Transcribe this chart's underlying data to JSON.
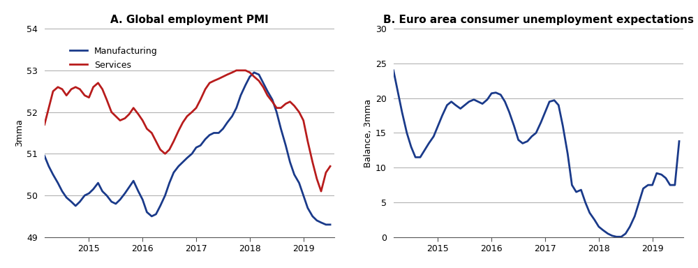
{
  "title_a": "A. Global employment PMI",
  "title_b": "B. Euro area consumer unemployment expectations",
  "ylabel_a": "3mma",
  "ylabel_b": "Balance, 3mma",
  "ylim_a": [
    49,
    54
  ],
  "ylim_b": [
    0,
    30
  ],
  "yticks_a": [
    49,
    50,
    51,
    52,
    53,
    54
  ],
  "yticks_b": [
    0,
    5,
    10,
    15,
    20,
    25,
    30
  ],
  "line_color_manufacturing": "#1a3a8a",
  "line_color_services": "#b81c1c",
  "line_color_b": "#1a3a8a",
  "line_width": 2.0,
  "background_color": "#ffffff",
  "grid_color": "#aaaaaa",
  "mfg_x": [
    2014.17,
    2014.25,
    2014.33,
    2014.42,
    2014.5,
    2014.58,
    2014.67,
    2014.75,
    2014.83,
    2014.92,
    2015.0,
    2015.08,
    2015.17,
    2015.25,
    2015.33,
    2015.42,
    2015.5,
    2015.58,
    2015.67,
    2015.75,
    2015.83,
    2015.92,
    2016.0,
    2016.08,
    2016.17,
    2016.25,
    2016.33,
    2016.42,
    2016.5,
    2016.58,
    2016.67,
    2016.75,
    2016.83,
    2016.92,
    2017.0,
    2017.08,
    2017.17,
    2017.25,
    2017.33,
    2017.42,
    2017.5,
    2017.58,
    2017.67,
    2017.75,
    2017.83,
    2017.92,
    2018.0,
    2018.08,
    2018.17,
    2018.25,
    2018.33,
    2018.42,
    2018.5,
    2018.58,
    2018.67,
    2018.75,
    2018.83,
    2018.92,
    2019.0,
    2019.08,
    2019.17,
    2019.25,
    2019.33,
    2019.42,
    2019.5
  ],
  "mfg_y": [
    50.95,
    50.7,
    50.5,
    50.3,
    50.1,
    49.95,
    49.85,
    49.75,
    49.85,
    50.0,
    50.05,
    50.15,
    50.3,
    50.1,
    50.0,
    49.85,
    49.8,
    49.9,
    50.05,
    50.2,
    50.35,
    50.1,
    49.9,
    49.6,
    49.5,
    49.55,
    49.75,
    50.0,
    50.3,
    50.55,
    50.7,
    50.8,
    50.9,
    51.0,
    51.15,
    51.2,
    51.35,
    51.45,
    51.5,
    51.5,
    51.6,
    51.75,
    51.9,
    52.1,
    52.4,
    52.65,
    52.85,
    52.95,
    52.9,
    52.7,
    52.5,
    52.3,
    52.0,
    51.6,
    51.2,
    50.8,
    50.5,
    50.3,
    50.0,
    49.7,
    49.5,
    49.4,
    49.35,
    49.3,
    49.3
  ],
  "svc_x": [
    2014.17,
    2014.25,
    2014.33,
    2014.42,
    2014.5,
    2014.58,
    2014.67,
    2014.75,
    2014.83,
    2014.92,
    2015.0,
    2015.08,
    2015.17,
    2015.25,
    2015.33,
    2015.42,
    2015.5,
    2015.58,
    2015.67,
    2015.75,
    2015.83,
    2015.92,
    2016.0,
    2016.08,
    2016.17,
    2016.25,
    2016.33,
    2016.42,
    2016.5,
    2016.58,
    2016.67,
    2016.75,
    2016.83,
    2016.92,
    2017.0,
    2017.08,
    2017.17,
    2017.25,
    2017.33,
    2017.42,
    2017.5,
    2017.58,
    2017.67,
    2017.75,
    2017.83,
    2017.92,
    2018.0,
    2018.08,
    2018.17,
    2018.25,
    2018.33,
    2018.42,
    2018.5,
    2018.58,
    2018.67,
    2018.75,
    2018.83,
    2018.92,
    2019.0,
    2019.08,
    2019.17,
    2019.25,
    2019.33,
    2019.42,
    2019.5
  ],
  "svc_y": [
    51.7,
    52.1,
    52.5,
    52.6,
    52.55,
    52.4,
    52.55,
    52.6,
    52.55,
    52.4,
    52.35,
    52.6,
    52.7,
    52.55,
    52.3,
    52.0,
    51.9,
    51.8,
    51.85,
    51.95,
    52.1,
    51.95,
    51.8,
    51.6,
    51.5,
    51.3,
    51.1,
    51.0,
    51.1,
    51.3,
    51.55,
    51.75,
    51.9,
    52.0,
    52.1,
    52.3,
    52.55,
    52.7,
    52.75,
    52.8,
    52.85,
    52.9,
    52.95,
    53.0,
    53.0,
    53.0,
    52.95,
    52.85,
    52.75,
    52.6,
    52.4,
    52.25,
    52.1,
    52.1,
    52.2,
    52.25,
    52.15,
    52.0,
    51.8,
    51.3,
    50.8,
    50.4,
    50.1,
    50.55,
    50.7
  ],
  "b_x": [
    2014.17,
    2014.25,
    2014.33,
    2014.42,
    2014.5,
    2014.58,
    2014.67,
    2014.75,
    2014.83,
    2014.92,
    2015.0,
    2015.08,
    2015.17,
    2015.25,
    2015.33,
    2015.42,
    2015.5,
    2015.58,
    2015.67,
    2015.75,
    2015.83,
    2015.92,
    2016.0,
    2016.08,
    2016.17,
    2016.25,
    2016.33,
    2016.42,
    2016.5,
    2016.58,
    2016.67,
    2016.75,
    2016.83,
    2016.92,
    2017.0,
    2017.08,
    2017.17,
    2017.25,
    2017.33,
    2017.42,
    2017.5,
    2017.58,
    2017.67,
    2017.75,
    2017.83,
    2017.92,
    2018.0,
    2018.08,
    2018.17,
    2018.25,
    2018.33,
    2018.42,
    2018.5,
    2018.58,
    2018.67,
    2018.75,
    2018.83,
    2018.92,
    2019.0,
    2019.08,
    2019.17,
    2019.25,
    2019.33,
    2019.42,
    2019.5
  ],
  "b_y": [
    24.0,
    21.0,
    18.0,
    15.0,
    13.0,
    11.5,
    11.5,
    12.5,
    13.5,
    14.5,
    16.0,
    17.5,
    19.0,
    19.5,
    19.0,
    18.5,
    19.0,
    19.5,
    19.8,
    19.5,
    19.2,
    19.8,
    20.7,
    20.8,
    20.5,
    19.5,
    18.0,
    16.0,
    14.0,
    13.5,
    13.8,
    14.5,
    15.0,
    16.5,
    18.0,
    19.5,
    19.7,
    19.0,
    16.0,
    12.0,
    7.5,
    6.5,
    6.8,
    5.0,
    3.5,
    2.5,
    1.5,
    1.0,
    0.5,
    0.2,
    0.05,
    0.05,
    0.5,
    1.5,
    3.0,
    5.0,
    7.0,
    7.5,
    7.5,
    9.2,
    9.0,
    8.5,
    7.5,
    7.5,
    13.8
  ],
  "xticks": [
    2015,
    2016,
    2017,
    2018,
    2019
  ],
  "xlim": [
    2014.17,
    2019.58
  ]
}
